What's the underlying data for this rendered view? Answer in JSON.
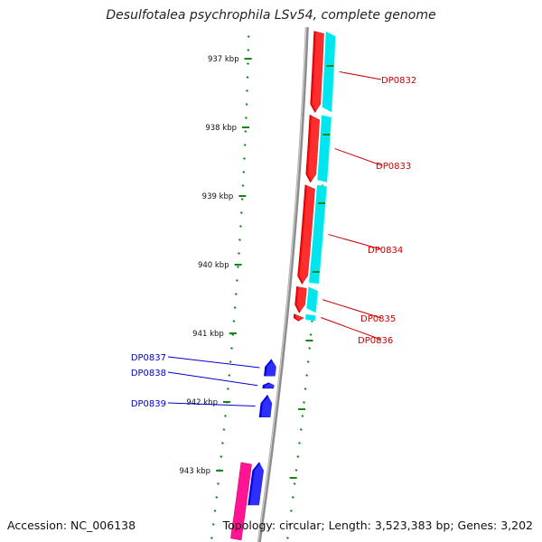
{
  "title": "Desulfotalea psychrophila LSv54, complete genome",
  "footer": {
    "accession": "Accession: NC_006138",
    "topology": "Topology: circular; Length: 3,523,383 bp; Genes: 3,202"
  },
  "axis": {
    "unit": "kbp",
    "ticks": [
      {
        "label": "937 kbp"
      },
      {
        "label": "938 kbp"
      },
      {
        "label": "939 kbp"
      },
      {
        "label": "940 kbp"
      },
      {
        "label": "941 kbp"
      },
      {
        "label": "942 kbp"
      },
      {
        "label": "943 kbp"
      }
    ]
  },
  "colors": {
    "backbone": "#8c8c8c",
    "forward_cds": "#ff0000",
    "forward_shadow": "#00e5ee",
    "reverse_cds": "#0000ff",
    "reverse_rna": "#ff1493",
    "tick": "#118811",
    "label_forward": "#cc0000",
    "label_reverse": "#0000cc"
  },
  "genes": [
    {
      "name": "DP0832",
      "strand": "forward",
      "start_kbp": 936.6,
      "end_kbp": 937.78
    },
    {
      "name": "DP0833",
      "strand": "forward",
      "start_kbp": 937.82,
      "end_kbp": 938.8
    },
    {
      "name": "DP0834",
      "strand": "forward",
      "start_kbp": 938.84,
      "end_kbp": 940.28
    },
    {
      "name": "DP0835",
      "strand": "forward",
      "start_kbp": 940.32,
      "end_kbp": 940.7
    },
    {
      "name": "DP0836",
      "strand": "forward",
      "start_kbp": 940.72,
      "end_kbp": 940.82
    },
    {
      "name": "DP0837",
      "strand": "reverse",
      "start_kbp": 941.38,
      "end_kbp": 941.62
    },
    {
      "name": "DP0838",
      "strand": "reverse",
      "start_kbp": 941.72,
      "end_kbp": 941.8
    },
    {
      "name": "DP0839",
      "strand": "reverse",
      "start_kbp": 941.9,
      "end_kbp": 942.22
    },
    {
      "name": "",
      "strand": "reverse",
      "start_kbp": 942.88,
      "end_kbp": 943.5
    }
  ]
}
